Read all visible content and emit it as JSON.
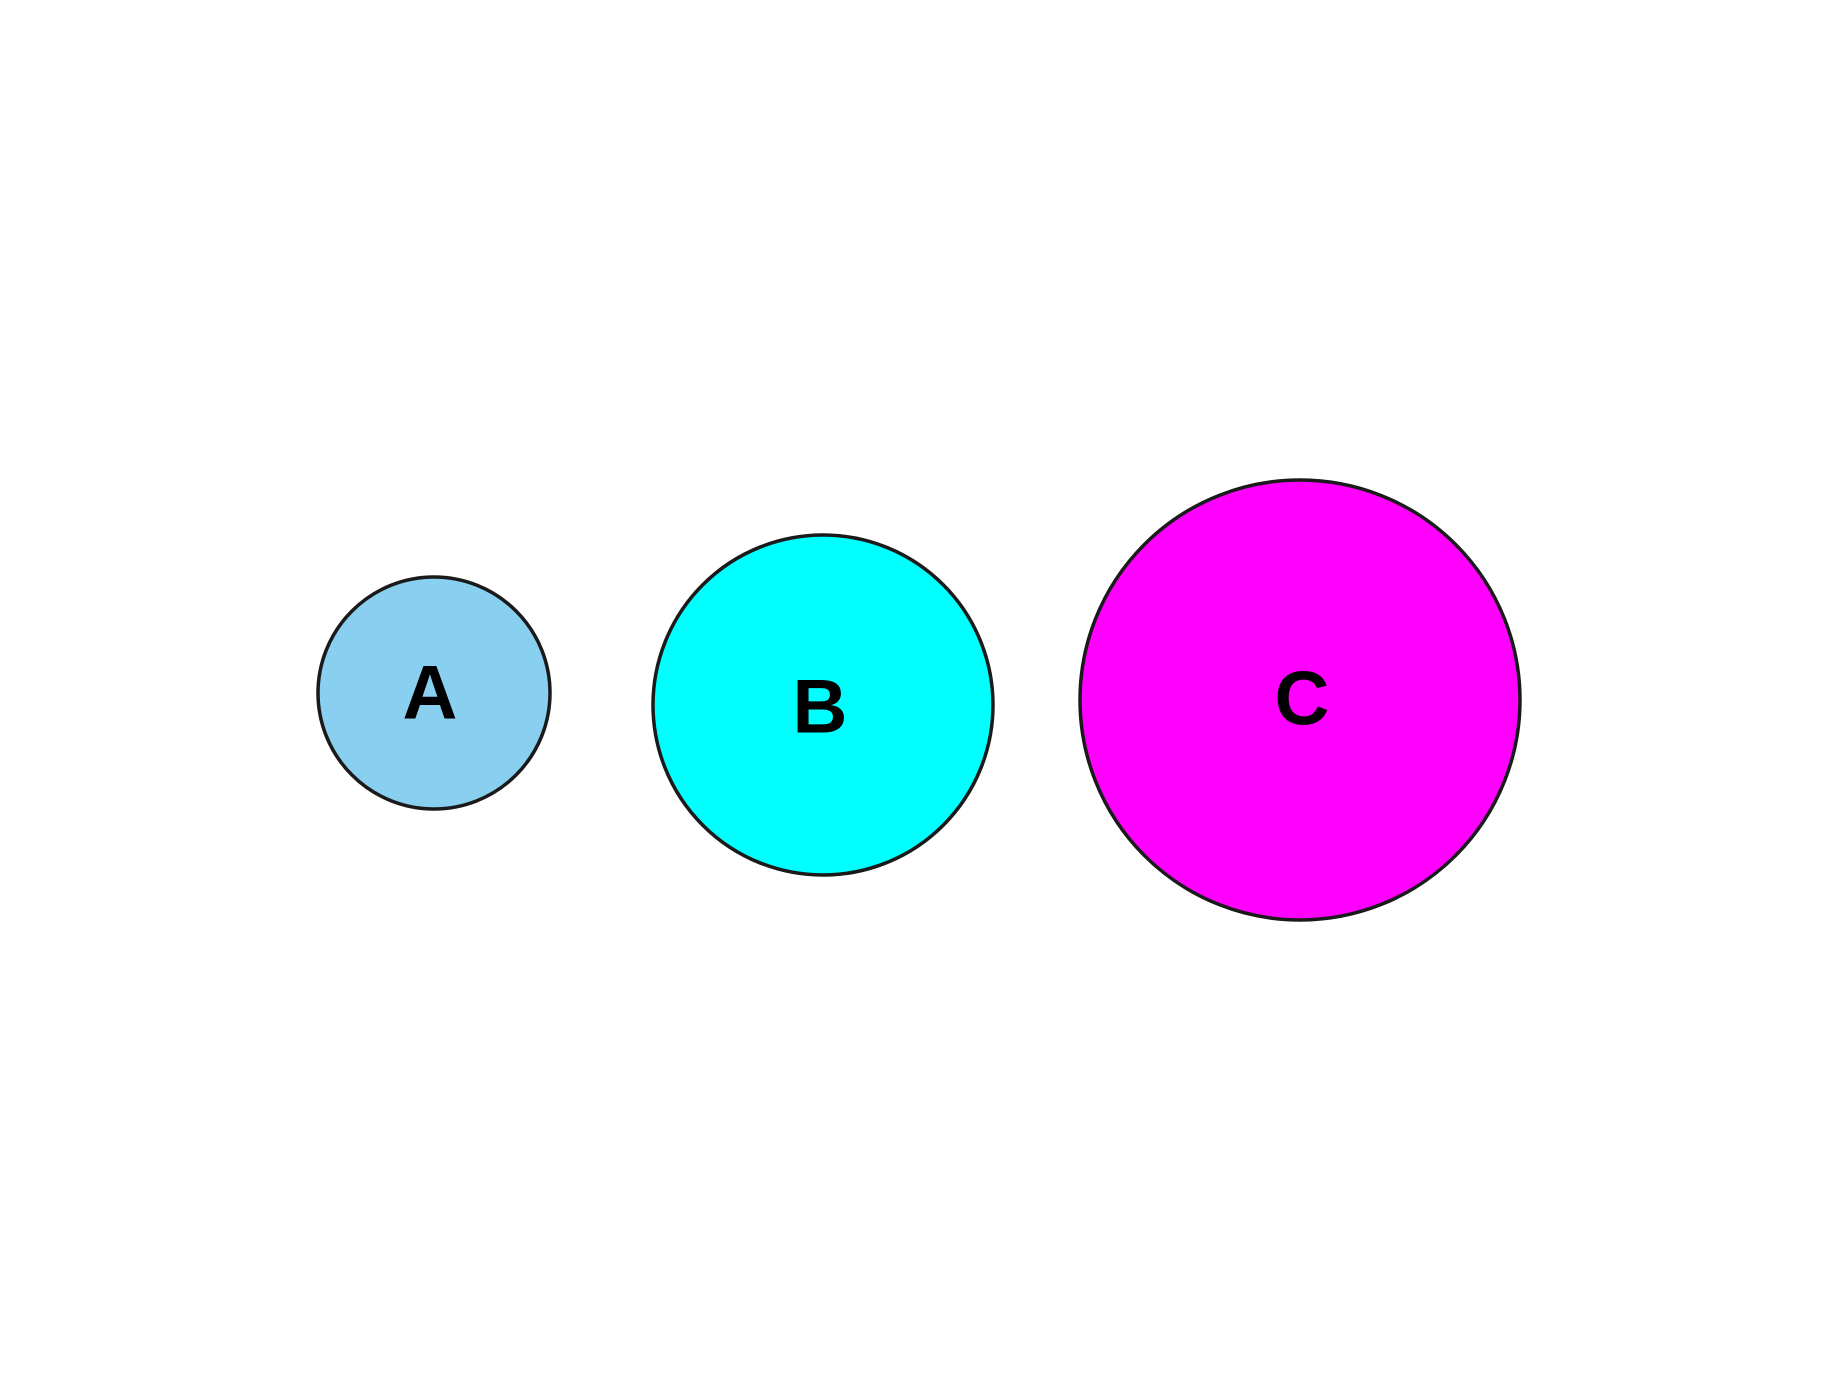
{
  "circles": [
    {
      "label": "A",
      "color": "#89CFF0"
    },
    {
      "label": "B",
      "color": "#00FFFF"
    },
    {
      "label": "C",
      "color": "#FF00FF"
    }
  ]
}
